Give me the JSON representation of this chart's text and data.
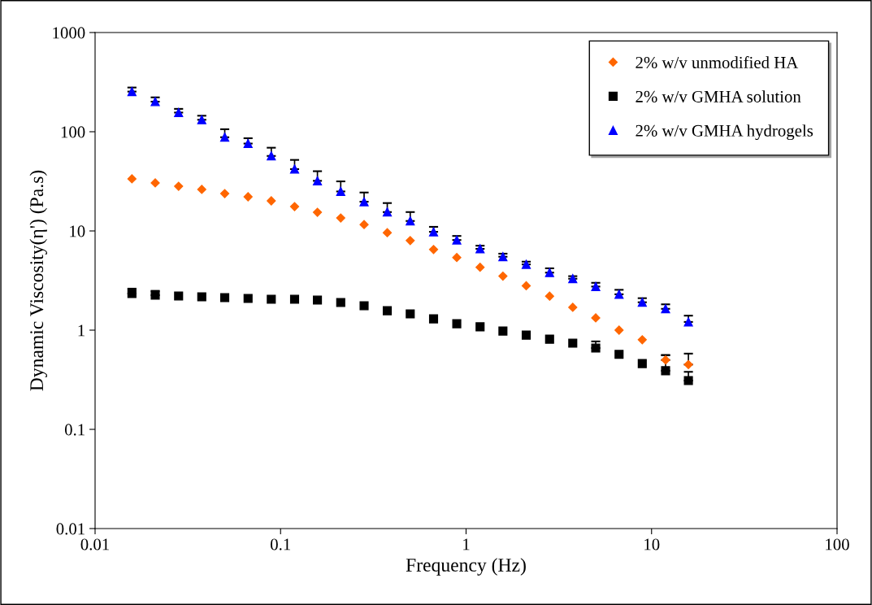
{
  "chart_data": {
    "type": "scatter",
    "xlabel": "Frequency (Hz)",
    "ylabel": "Dynamic Viscosity(η') (Pa.s)",
    "log": "xy",
    "grid": false,
    "legend": "top right",
    "x": [
      0.0158,
      0.0211,
      0.0282,
      0.0376,
      0.05,
      0.0668,
      0.0891,
      0.119,
      0.158,
      0.211,
      0.282,
      0.376,
      0.5,
      0.668,
      0.891,
      1.19,
      1.58,
      2.11,
      2.82,
      3.76,
      5.0,
      6.68,
      8.91,
      11.9,
      15.8
    ],
    "xlim": [
      0.01,
      100
    ],
    "xticks": [
      0.01,
      0.1,
      1,
      10,
      100
    ],
    "ylim": [
      0.01,
      1000
    ],
    "yticks": [
      0.01,
      0.1,
      1,
      10,
      100,
      1000
    ],
    "series": [
      {
        "name": "2% w/v unmodified HA",
        "color": "#ff6600",
        "marker": "diamond",
        "values": [
          33.5,
          30.5,
          28.2,
          26.2,
          23.8,
          22.1,
          20.1,
          17.6,
          15.4,
          13.5,
          11.6,
          9.6,
          8.0,
          6.5,
          5.4,
          4.3,
          3.5,
          2.8,
          2.2,
          1.7,
          1.33,
          1.0,
          0.8,
          0.5,
          0.45
        ],
        "errors": [
          null,
          null,
          null,
          null,
          null,
          null,
          null,
          null,
          null,
          null,
          null,
          null,
          null,
          null,
          null,
          null,
          null,
          null,
          null,
          null,
          null,
          null,
          null,
          [
            0.5,
            0.56
          ],
          [
            0.45,
            0.58
          ]
        ]
      },
      {
        "name": "2% w/v GMHA solution",
        "color": "#000000",
        "marker": "square",
        "values": [
          2.34,
          2.25,
          2.21,
          2.17,
          2.13,
          2.09,
          2.05,
          2.05,
          2.01,
          1.9,
          1.76,
          1.57,
          1.46,
          1.3,
          1.16,
          1.08,
          0.98,
          0.89,
          0.81,
          0.74,
          0.66,
          0.57,
          0.46,
          0.39,
          0.31
        ],
        "errors": [
          [
            2.34,
            2.62
          ],
          [
            2.25,
            2.49
          ],
          null,
          null,
          null,
          null,
          null,
          null,
          null,
          null,
          null,
          null,
          null,
          null,
          null,
          null,
          null,
          null,
          null,
          null,
          [
            0.66,
            0.77
          ],
          null,
          null,
          [
            0.39,
            0.56
          ],
          [
            0.31,
            0.38
          ]
        ]
      },
      {
        "name": "2% w/v GMHA hydrogels",
        "color": "#0000ff",
        "marker": "triangle",
        "values": [
          254,
          201,
          156,
          132,
          88,
          76,
          57,
          42,
          32,
          25,
          19.7,
          15.5,
          12.6,
          9.8,
          8.1,
          6.6,
          5.5,
          4.6,
          3.8,
          3.3,
          2.75,
          2.3,
          1.91,
          1.64,
          1.21
        ],
        "errors": [
          [
            254,
            279
          ],
          [
            201,
            222
          ],
          [
            156,
            170
          ],
          [
            132,
            145
          ],
          [
            88,
            106
          ],
          [
            76,
            86
          ],
          [
            57,
            69
          ],
          [
            42,
            52
          ],
          [
            32,
            40
          ],
          [
            25,
            31.6
          ],
          [
            19.7,
            24.4
          ],
          [
            15.5,
            19.1
          ],
          [
            12.6,
            15.5
          ],
          [
            9.8,
            11.0
          ],
          [
            8.1,
            8.9
          ],
          [
            6.6,
            7.1
          ],
          [
            5.5,
            5.9
          ],
          [
            4.6,
            4.9
          ],
          [
            3.8,
            4.2
          ],
          [
            3.3,
            3.5
          ],
          [
            2.75,
            3.0
          ],
          [
            2.3,
            2.55
          ],
          [
            1.91,
            2.1
          ],
          [
            1.64,
            1.82
          ],
          [
            1.21,
            1.4
          ]
        ]
      }
    ]
  }
}
